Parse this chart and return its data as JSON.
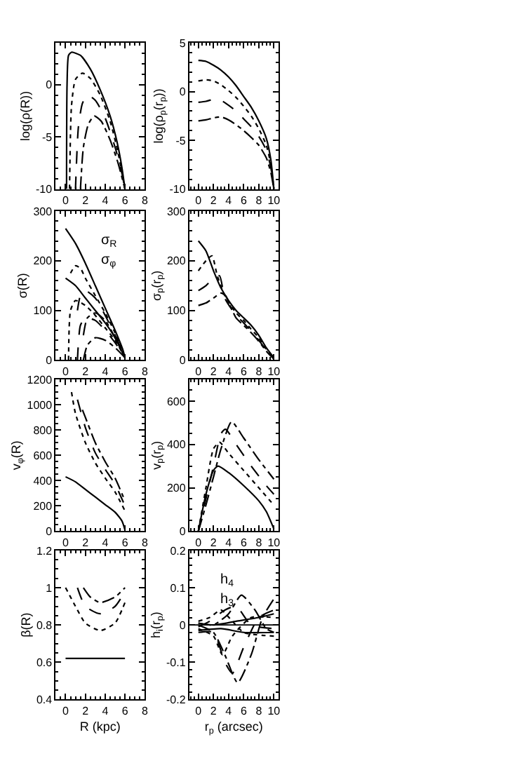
{
  "chart_data": [
    {
      "type": "line",
      "ylabel": "log(ρ(R))",
      "xlim": [
        -1,
        8
      ],
      "xticks": [
        0,
        2,
        4,
        6,
        8
      ],
      "ylim": [
        -10,
        4
      ],
      "yticks": [
        -10,
        -5,
        0
      ],
      "series": [
        {
          "color": "#000000",
          "line_style": "solid",
          "x": [
            0.1,
            0.15,
            0.3,
            0.6,
            1.5,
            2.5,
            3.5,
            4.5,
            5.2,
            5.7,
            6
          ],
          "values": [
            -10,
            0,
            2.8,
            3.1,
            2.8,
            1.5,
            -0.5,
            -3,
            -5.5,
            -8,
            -10
          ]
        },
        {
          "color": "#000000",
          "line_style": "dotted",
          "x": [
            0.4,
            0.6,
            1,
            1.7,
            2.5,
            3.5,
            4.5,
            5.3,
            5.8,
            6
          ],
          "values": [
            -10,
            -2,
            0.5,
            1.1,
            0.6,
            -1,
            -3.5,
            -6.5,
            -9,
            -10
          ]
        },
        {
          "color": "#000000",
          "line_style": "dashed",
          "x": [
            1.0,
            1.3,
            1.7,
            2.2,
            3,
            4,
            5,
            5.7,
            6
          ],
          "values": [
            -10,
            -4,
            -1.8,
            -1,
            -1.5,
            -3.2,
            -6,
            -8.5,
            -10
          ]
        },
        {
          "color": "#000000",
          "line_style": "dashdot",
          "x": [
            1.5,
            1.8,
            2.3,
            2.9,
            3.6,
            4.5,
            5.3,
            6
          ],
          "values": [
            -10,
            -6,
            -3.8,
            -3,
            -3.5,
            -5.3,
            -7.5,
            -10
          ]
        }
      ]
    },
    {
      "type": "line",
      "ylabel": "log(ρ$_{p}$(r$_{p}$))",
      "xlim": [
        -1.2,
        10.6
      ],
      "xticks": [
        0,
        2,
        4,
        6,
        8,
        10
      ],
      "ylim": [
        -10,
        5
      ],
      "yticks": [
        -10,
        -5,
        0,
        5
      ],
      "series": [
        {
          "color": "#000000",
          "line_style": "solid",
          "x": [
            0,
            1,
            2,
            3,
            4,
            5,
            6,
            7,
            8,
            9,
            9.6,
            10
          ],
          "values": [
            3.2,
            3.1,
            2.7,
            2.2,
            1.5,
            0.6,
            -0.5,
            -1.6,
            -3,
            -4.8,
            -7,
            -10
          ]
        },
        {
          "color": "#000000",
          "line_style": "dotted",
          "x": [
            0,
            1,
            2,
            3,
            4,
            5,
            6,
            7,
            8,
            9,
            9.6,
            10
          ],
          "values": [
            1.1,
            1.2,
            1.1,
            0.7,
            0.1,
            -0.6,
            -1.5,
            -2.5,
            -3.8,
            -5.5,
            -7.5,
            -10
          ]
        },
        {
          "color": "#000000",
          "line_style": "dashed",
          "x": [
            0,
            1,
            2,
            3,
            4,
            5,
            6,
            7,
            8,
            9,
            9.6,
            10
          ],
          "values": [
            -1.1,
            -1,
            -0.8,
            -0.9,
            -1.4,
            -2,
            -2.8,
            -3.6,
            -4.6,
            -6,
            -7.8,
            -10
          ]
        },
        {
          "color": "#000000",
          "line_style": "dashdot",
          "x": [
            0,
            1,
            2,
            3,
            4,
            5,
            6,
            7,
            8,
            9,
            9.6,
            10
          ],
          "values": [
            -3,
            -2.9,
            -2.7,
            -2.6,
            -2.9,
            -3.4,
            -4,
            -4.7,
            -5.5,
            -6.8,
            -8.3,
            -10
          ]
        }
      ]
    },
    {
      "type": "line",
      "ylabel": "σ(R)",
      "xlim": [
        -1,
        8
      ],
      "xticks": [
        0,
        2,
        4,
        6,
        8
      ],
      "ylim": [
        0,
        300
      ],
      "yticks": [
        0,
        100,
        200,
        300
      ],
      "annotations": [
        "σ$_{R}$",
        "σ$_{φ}$"
      ],
      "series": [
        {
          "color": "#000000",
          "line_style": "solid",
          "x": [
            0,
            1,
            2,
            3,
            4,
            5,
            5.8,
            6
          ],
          "values": [
            265,
            235,
            195,
            150,
            105,
            60,
            20,
            5
          ]
        },
        {
          "color": "#000000",
          "line_style": "solid",
          "x": [
            0,
            1,
            2,
            3,
            4,
            5,
            6
          ],
          "values": [
            165,
            150,
            125,
            100,
            75,
            45,
            5
          ]
        },
        {
          "color": "#000000",
          "line_style": "dotted",
          "x": [
            0.5,
            1,
            1.5,
            2,
            3,
            4,
            5,
            6
          ],
          "values": [
            175,
            190,
            185,
            165,
            130,
            95,
            55,
            5
          ]
        },
        {
          "color": "#000000",
          "line_style": "dotted",
          "x": [
            0.3,
            0.5,
            1,
            2,
            3,
            4,
            5,
            6
          ],
          "values": [
            0,
            100,
            120,
            110,
            90,
            65,
            40,
            5
          ]
        },
        {
          "color": "#000000",
          "line_style": "dashed",
          "x": [
            1.2,
            1.5,
            2,
            3,
            4,
            5,
            6
          ],
          "values": [
            100,
            130,
            140,
            125,
            90,
            50,
            5
          ]
        },
        {
          "color": "#000000",
          "line_style": "dashed",
          "x": [
            1.2,
            1.5,
            2,
            3,
            4,
            5,
            6
          ],
          "values": [
            0,
            70,
            85,
            80,
            60,
            35,
            5
          ]
        },
        {
          "color": "#000000",
          "line_style": "dashdot",
          "x": [
            1.8,
            2.2,
            3,
            4,
            5,
            6
          ],
          "values": [
            50,
            85,
            95,
            80,
            45,
            5
          ]
        },
        {
          "color": "#000000",
          "line_style": "dashdot",
          "x": [
            1.8,
            2.2,
            3,
            4,
            5,
            6
          ],
          "values": [
            0,
            30,
            45,
            40,
            25,
            5
          ]
        }
      ]
    },
    {
      "type": "line",
      "ylabel": "σ$_{p}$(r$_{p}$)",
      "xlim": [
        -1.2,
        10.6
      ],
      "xticks": [
        0,
        2,
        4,
        6,
        8,
        10
      ],
      "ylim": [
        0,
        300
      ],
      "yticks": [
        0,
        100,
        200,
        300
      ],
      "series": [
        {
          "color": "#000000",
          "line_style": "solid",
          "x": [
            0,
            1,
            2,
            3,
            4,
            5,
            6,
            7,
            8,
            9,
            10
          ],
          "values": [
            240,
            220,
            180,
            145,
            120,
            100,
            85,
            70,
            50,
            25,
            5
          ]
        },
        {
          "color": "#000000",
          "line_style": "dotted",
          "x": [
            0,
            1,
            1.8,
            2.5,
            3.5,
            5,
            6,
            7,
            8,
            9,
            10
          ],
          "values": [
            180,
            200,
            210,
            170,
            130,
            95,
            80,
            62,
            45,
            22,
            3
          ]
        },
        {
          "color": "#000000",
          "line_style": "dashed",
          "x": [
            0,
            1,
            2,
            2.8,
            3.5,
            5,
            6,
            7,
            8,
            9,
            10
          ],
          "values": [
            140,
            150,
            165,
            170,
            125,
            90,
            75,
            58,
            40,
            20,
            3
          ]
        },
        {
          "color": "#000000",
          "line_style": "dashdot",
          "x": [
            0,
            1,
            2,
            3,
            3.6,
            4.2,
            5,
            6,
            7,
            8,
            9,
            10
          ],
          "values": [
            110,
            115,
            125,
            135,
            130,
            110,
            85,
            70,
            55,
            38,
            18,
            2
          ]
        }
      ]
    },
    {
      "type": "line",
      "ylabel": "v$_{φ}$(R)",
      "xlim": [
        -1,
        8
      ],
      "xticks": [
        0,
        2,
        4,
        6,
        8
      ],
      "ylim": [
        0,
        1200
      ],
      "yticks": [
        0,
        200,
        400,
        600,
        800,
        1000,
        1200
      ],
      "series": [
        {
          "color": "#000000",
          "line_style": "solid",
          "x": [
            0,
            1,
            2,
            3,
            4,
            5,
            5.7,
            6
          ],
          "values": [
            430,
            390,
            330,
            270,
            210,
            150,
            80,
            10
          ]
        },
        {
          "color": "#000000",
          "line_style": "dotted",
          "x": [
            0.6,
            1,
            2,
            3,
            4,
            5,
            6
          ],
          "values": [
            1100,
            930,
            700,
            540,
            420,
            310,
            160
          ]
        },
        {
          "color": "#000000",
          "line_style": "dashed",
          "x": [
            1.2,
            2,
            3,
            4,
            5,
            6
          ],
          "values": [
            1040,
            820,
            620,
            490,
            370,
            200
          ]
        },
        {
          "color": "#000000",
          "line_style": "dashdot",
          "x": [
            1.7,
            2,
            3,
            4,
            5,
            6
          ],
          "values": [
            960,
            900,
            700,
            550,
            420,
            240
          ]
        }
      ]
    },
    {
      "type": "line",
      "ylabel": "v$_{p}$(r$_{p}$)",
      "xlim": [
        -1.2,
        10.6
      ],
      "xticks": [
        0,
        2,
        4,
        6,
        8,
        10
      ],
      "ylim": [
        0,
        700
      ],
      "yticks": [
        0,
        200,
        400,
        600
      ],
      "series": [
        {
          "color": "#000000",
          "line_style": "solid",
          "x": [
            0,
            1,
            2,
            2.6,
            4,
            6,
            8,
            9,
            10
          ],
          "values": [
            0,
            170,
            280,
            300,
            270,
            210,
            140,
            90,
            10
          ]
        },
        {
          "color": "#000000",
          "line_style": "dotted",
          "x": [
            0,
            1,
            2,
            2.8,
            4,
            6,
            8,
            10
          ],
          "values": [
            0,
            200,
            380,
            410,
            360,
            280,
            200,
            120
          ]
        },
        {
          "color": "#000000",
          "line_style": "dashed",
          "x": [
            0,
            1,
            2,
            3,
            3.6,
            5,
            7,
            9,
            10
          ],
          "values": [
            0,
            150,
            300,
            450,
            470,
            400,
            300,
            210,
            170
          ]
        },
        {
          "color": "#000000",
          "line_style": "dashdot",
          "x": [
            0,
            1,
            2,
            3,
            4.4,
            6,
            8,
            10
          ],
          "values": [
            0,
            120,
            250,
            380,
            505,
            430,
            330,
            240
          ]
        }
      ]
    },
    {
      "type": "line",
      "ylabel": "β(R)",
      "xlabel": "R (kpc)",
      "xlim": [
        -1,
        8
      ],
      "xticks": [
        0,
        2,
        4,
        6,
        8
      ],
      "ylim": [
        0.4,
        1.2
      ],
      "yticks": [
        0.4,
        0.6,
        0.8,
        1,
        1.2
      ],
      "series": [
        {
          "color": "#000000",
          "line_style": "solid",
          "x": [
            0,
            6
          ],
          "values": [
            0.62,
            0.62
          ]
        },
        {
          "color": "#000000",
          "line_style": "dotted",
          "x": [
            0,
            1,
            2,
            3.5,
            5,
            6
          ],
          "values": [
            1,
            0.9,
            0.81,
            0.77,
            0.81,
            0.92
          ]
        },
        {
          "color": "#000000",
          "line_style": "dashed",
          "x": [
            1.2,
            2,
            3.5,
            5,
            6
          ],
          "values": [
            1,
            0.9,
            0.86,
            0.9,
            0.98
          ]
        },
        {
          "color": "#000000",
          "line_style": "dashdot",
          "x": [
            1.8,
            2.5,
            3.5,
            5,
            6
          ],
          "values": [
            1,
            0.95,
            0.92,
            0.95,
            1
          ]
        }
      ]
    },
    {
      "type": "line",
      "ylabel": "h$_{i}$(r$_{p}$)",
      "xlabel": "r$_{p}$ (arcsec)",
      "xlim": [
        -1.2,
        10.6
      ],
      "xticks": [
        0,
        2,
        4,
        6,
        8,
        10
      ],
      "ylim": [
        -0.2,
        0.2
      ],
      "yticks": [
        -0.2,
        -0.1,
        0,
        0.1,
        0.2
      ],
      "annotations": [
        "h$_{4}$",
        "h$_{3}$"
      ],
      "ref_lines": [
        {
          "axis": "y",
          "value": 0,
          "color": "#000000",
          "line_style": "solid"
        }
      ],
      "series": [
        {
          "color": "#000000",
          "line_style": "dashdot",
          "x": [
            0,
            2,
            3.5,
            5.2,
            7,
            8.5,
            10
          ],
          "values": [
            0,
            -0.02,
            -0.08,
            -0.155,
            -0.08,
            0.02,
            0.07
          ]
        },
        {
          "color": "#000000",
          "line_style": "dashed",
          "x": [
            0,
            2,
            3.5,
            4.5,
            6,
            8,
            10
          ],
          "values": [
            -0.02,
            -0.02,
            -0.1,
            -0.13,
            -0.06,
            0.02,
            0.04
          ]
        },
        {
          "color": "#000000",
          "line_style": "dotted",
          "x": [
            0,
            2,
            3.2,
            4.5,
            7,
            10
          ],
          "values": [
            -0.01,
            -0.03,
            -0.08,
            -0.03,
            0.02,
            0.02
          ]
        },
        {
          "color": "#000000",
          "line_style": "solid",
          "x": [
            0,
            2,
            5,
            8,
            10
          ],
          "values": [
            0.005,
            0,
            0.01,
            0.02,
            0.03
          ]
        },
        {
          "color": "#000000",
          "line_style": "dashdot",
          "x": [
            0,
            2,
            4,
            5.7,
            7.5,
            9,
            10
          ],
          "values": [
            0.005,
            0,
            0.03,
            0.08,
            0.04,
            -0.01,
            -0.02
          ]
        },
        {
          "color": "#000000",
          "line_style": "dashed",
          "x": [
            0,
            1.5,
            3.5,
            5,
            7,
            10
          ],
          "values": [
            -0.005,
            0.01,
            0.04,
            0.05,
            0,
            -0.01
          ]
        },
        {
          "color": "#000000",
          "line_style": "dotted",
          "x": [
            0,
            1.5,
            3,
            4.5,
            6,
            10
          ],
          "values": [
            0.01,
            0.02,
            0.04,
            0.01,
            -0.02,
            -0.03
          ]
        },
        {
          "color": "#000000",
          "line_style": "solid",
          "x": [
            0,
            3,
            6,
            10
          ],
          "values": [
            -0.015,
            -0.01,
            -0.02,
            -0.02
          ]
        }
      ]
    }
  ]
}
